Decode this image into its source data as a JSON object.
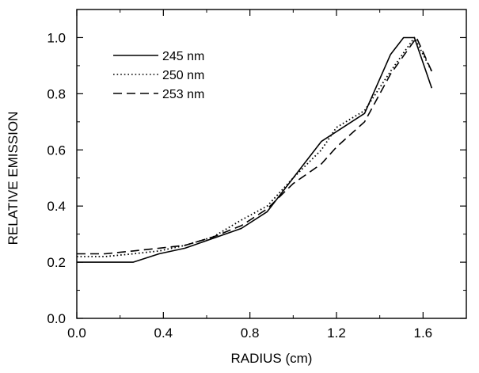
{
  "chart_data": {
    "type": "line",
    "title": "",
    "xlabel": "RADIUS (cm)",
    "ylabel": "RELATIVE EMISSION",
    "xlim": [
      0.0,
      1.8
    ],
    "ylim": [
      0.0,
      1.1
    ],
    "x_ticks": [
      0.0,
      0.4,
      0.8,
      1.2,
      1.6
    ],
    "x_tick_labels": [
      "0.0",
      "0.4",
      "0.8",
      "1.2",
      "1.6"
    ],
    "x_minor_ticks": [
      0.2,
      0.6,
      1.0,
      1.4,
      1.8
    ],
    "y_ticks": [
      0.0,
      0.2,
      0.4,
      0.6,
      0.8,
      1.0
    ],
    "y_tick_labels": [
      "0.0",
      "0.2",
      "0.4",
      "0.6",
      "0.8",
      "1.0"
    ],
    "y_minor_ticks": [
      0.1,
      0.3,
      0.5,
      0.7,
      0.9
    ],
    "grid": false,
    "legend_position": "top-left",
    "series": [
      {
        "name": "245 nm",
        "style": "solid",
        "color": "#000000",
        "x": [
          0.0,
          0.26,
          0.38,
          0.5,
          0.76,
          0.88,
          1.0,
          1.13,
          1.33,
          1.45,
          1.51,
          1.56,
          1.64
        ],
        "y": [
          0.2,
          0.2,
          0.23,
          0.25,
          0.32,
          0.38,
          0.5,
          0.63,
          0.73,
          0.94,
          1.0,
          1.0,
          0.82
        ]
      },
      {
        "name": "250 nm",
        "style": "dotted",
        "color": "#000000",
        "x": [
          0.0,
          0.13,
          0.26,
          0.38,
          0.5,
          0.63,
          0.76,
          0.88,
          1.0,
          1.13,
          1.2,
          1.33,
          1.45,
          1.56,
          1.64
        ],
        "y": [
          0.22,
          0.22,
          0.23,
          0.24,
          0.26,
          0.29,
          0.35,
          0.4,
          0.5,
          0.6,
          0.68,
          0.74,
          0.88,
          1.0,
          0.88
        ]
      },
      {
        "name": "253 nm",
        "style": "dashed",
        "color": "#000000",
        "x": [
          0.0,
          0.13,
          0.26,
          0.38,
          0.5,
          0.63,
          0.76,
          0.88,
          1.0,
          1.13,
          1.2,
          1.33,
          1.45,
          1.57,
          1.64
        ],
        "y": [
          0.23,
          0.23,
          0.24,
          0.25,
          0.26,
          0.29,
          0.33,
          0.39,
          0.48,
          0.55,
          0.61,
          0.7,
          0.87,
          1.0,
          0.88
        ]
      }
    ]
  }
}
